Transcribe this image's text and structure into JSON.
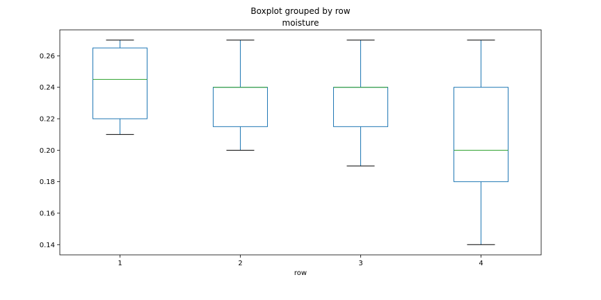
{
  "figure": {
    "suptitle": "Boxplot grouped by row",
    "title": "moisture"
  },
  "chart_data": {
    "type": "boxplot",
    "title": "moisture",
    "suptitle": "Boxplot grouped by row",
    "xlabel": "row",
    "ylabel": "",
    "categories": [
      "1",
      "2",
      "3",
      "4"
    ],
    "ylim": [
      0.1335,
      0.2765
    ],
    "yticks": [
      0.14,
      0.16,
      0.18,
      0.2,
      0.22,
      0.24,
      0.26
    ],
    "ytick_labels": [
      "0.14",
      "0.16",
      "0.18",
      "0.20",
      "0.22",
      "0.24",
      "0.26"
    ],
    "grid": false,
    "legend": "none",
    "boxes": [
      {
        "label": "1",
        "whislo": 0.21,
        "q1": 0.22,
        "med": 0.245,
        "q3": 0.265,
        "whishi": 0.27
      },
      {
        "label": "2",
        "whislo": 0.2,
        "q1": 0.215,
        "med": 0.24,
        "q3": 0.24,
        "whishi": 0.27
      },
      {
        "label": "3",
        "whislo": 0.19,
        "q1": 0.215,
        "med": 0.24,
        "q3": 0.24,
        "whishi": 0.27
      },
      {
        "label": "4",
        "whislo": 0.14,
        "q1": 0.18,
        "med": 0.2,
        "q3": 0.24,
        "whishi": 0.27
      }
    ],
    "colors": {
      "box": "#1f77b4",
      "median": "#2ca02c",
      "caps": "#000000"
    }
  }
}
